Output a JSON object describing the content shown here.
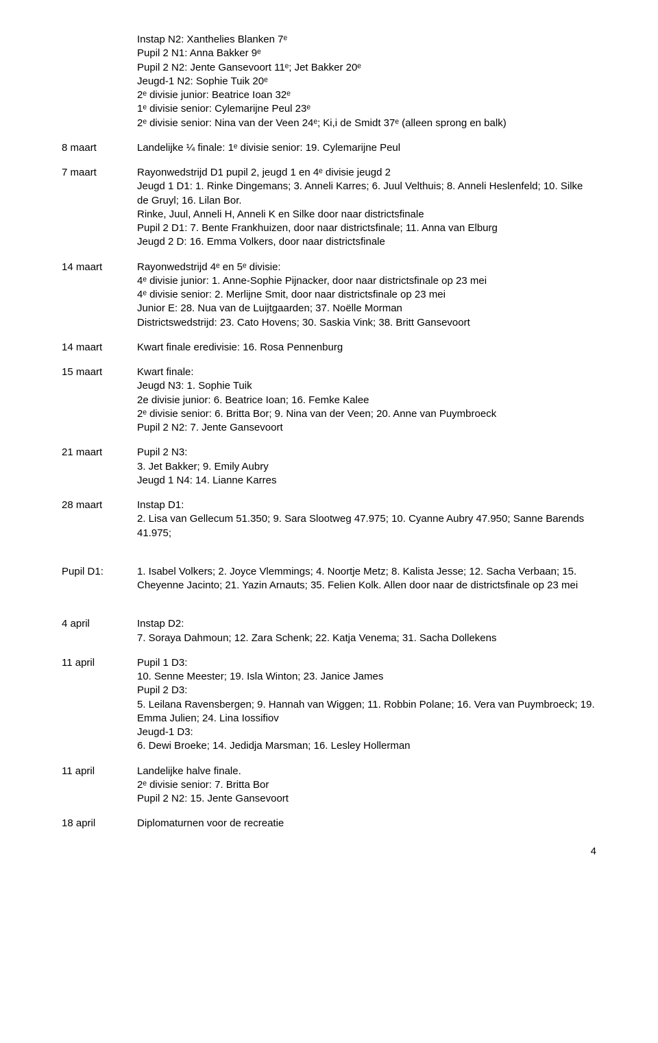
{
  "intro": [
    "Instap N2: Xanthelies Blanken 7ᵉ",
    "Pupil 2 N1: Anna Bakker 9ᵉ",
    "Pupil 2 N2: Jente Gansevoort 11ᵉ; Jet Bakker 20ᵉ",
    "Jeugd-1 N2: Sophie Tuik 20ᵉ",
    "2ᵉ divisie junior: Beatrice Ioan 32ᵉ",
    "1ᵉ divisie senior: Cylemarijne Peul 23ᵉ",
    "2ᵉ divisie senior: Nina van der Veen 24ᵉ; Ki,i de Smidt 37ᵉ (alleen sprong en balk)"
  ],
  "entries": [
    {
      "label": "8 maart",
      "lines": [
        "Landelijke ¼ finale: 1ᵉ divisie senior: 19. Cylemarijne Peul"
      ]
    },
    {
      "label": "7 maart",
      "lines": [
        "Rayonwedstrijd D1 pupil 2, jeugd 1 en 4ᵉ divisie jeugd 2",
        "Jeugd 1 D1: 1. Rinke Dingemans; 3. Anneli Karres; 6. Juul Velthuis; 8. Anneli Heslenfeld; 10. Silke de Gruyl; 16. Lilan Bor.",
        "Rinke, Juul, Anneli H, Anneli K en Silke door naar districtsfinale",
        "Pupil 2 D1: 7. Bente Frankhuizen, door naar districtsfinale; 11. Anna van Elburg",
        "Jeugd 2 D: 16. Emma Volkers, door naar districtsfinale"
      ]
    },
    {
      "label": "14 maart",
      "lines": [
        "Rayonwedstrijd 4ᵉ en 5ᵉ divisie:",
        "4ᵉ divisie junior: 1. Anne-Sophie Pijnacker, door naar districtsfinale op 23 mei",
        "4ᵉ divisie senior: 2. Merlijne Smit, door naar districtsfinale op 23 mei",
        "Junior E: 28. Nua van de Luijtgaarden; 37. Noëlle Morman",
        "Districtswedstrijd: 23. Cato Hovens; 30. Saskia Vink; 38. Britt Gansevoort"
      ]
    },
    {
      "label": "14 maart",
      "lines": [
        "Kwart finale eredivisie:  16. Rosa Pennenburg"
      ]
    },
    {
      "label": "15 maart",
      "lines": [
        "Kwart finale:",
        "Jeugd N3: 1. Sophie Tuik",
        "2e divisie junior: 6. Beatrice Ioan; 16. Femke Kalee",
        "2ᵉ divisie senior: 6. Britta Bor; 9. Nina van der Veen; 20. Anne van Puymbroeck",
        "Pupil 2 N2: 7. Jente Gansevoort"
      ]
    },
    {
      "label": "21 maart",
      "lines": [
        "Pupil 2 N3:",
        "3. Jet Bakker; 9. Emily Aubry",
        "Jeugd 1 N4: 14. Lianne Karres"
      ]
    },
    {
      "label": "28 maart",
      "lines": [
        "Instap D1:",
        "2. Lisa van Gellecum 51.350; 9. Sara Slootweg 47.975; 10. Cyanne Aubry 47.950; Sanne Barends 41.975;"
      ]
    }
  ],
  "pupilD1": {
    "label": "Pupil D1:",
    "lines": [
      "1. Isabel Volkers; 2. Joyce Vlemmings; 4. Noortje Metz; 8. Kalista Jesse; 12. Sacha Verbaan; 15. Cheyenne Jacinto; 21. Yazin Arnauts; 35.  Felien Kolk. Allen door naar de districtsfinale op 23 mei"
    ]
  },
  "entries2": [
    {
      "label": "4 april",
      "lines": [
        "Instap D2:",
        "7. Soraya Dahmoun; 12. Zara Schenk; 22. Katja Venema; 31. Sacha Dollekens"
      ]
    },
    {
      "label": "11 april",
      "lines": [
        "Pupil 1 D3:",
        "10. Senne Meester; 19. Isla Winton; 23. Janice James",
        "Pupil 2 D3:",
        "5. Leilana Ravensbergen; 9. Hannah van Wiggen; 11. Robbin Polane; 16. Vera van Puymbroeck; 19. Emma Julien; 24. Lina Iossifiov",
        "Jeugd-1 D3:",
        "6. Dewi Broeke; 14. Jedidja Marsman; 16. Lesley Hollerman"
      ]
    },
    {
      "label": "11 april",
      "lines": [
        "Landelijke halve finale.",
        "2ᵉ divisie senior: 7. Britta Bor",
        "Pupil 2 N2: 15. Jente Gansevoort"
      ]
    },
    {
      "label": "18 april",
      "lines": [
        "Diplomaturnen voor de recreatie"
      ]
    }
  ],
  "pageNumber": "4"
}
